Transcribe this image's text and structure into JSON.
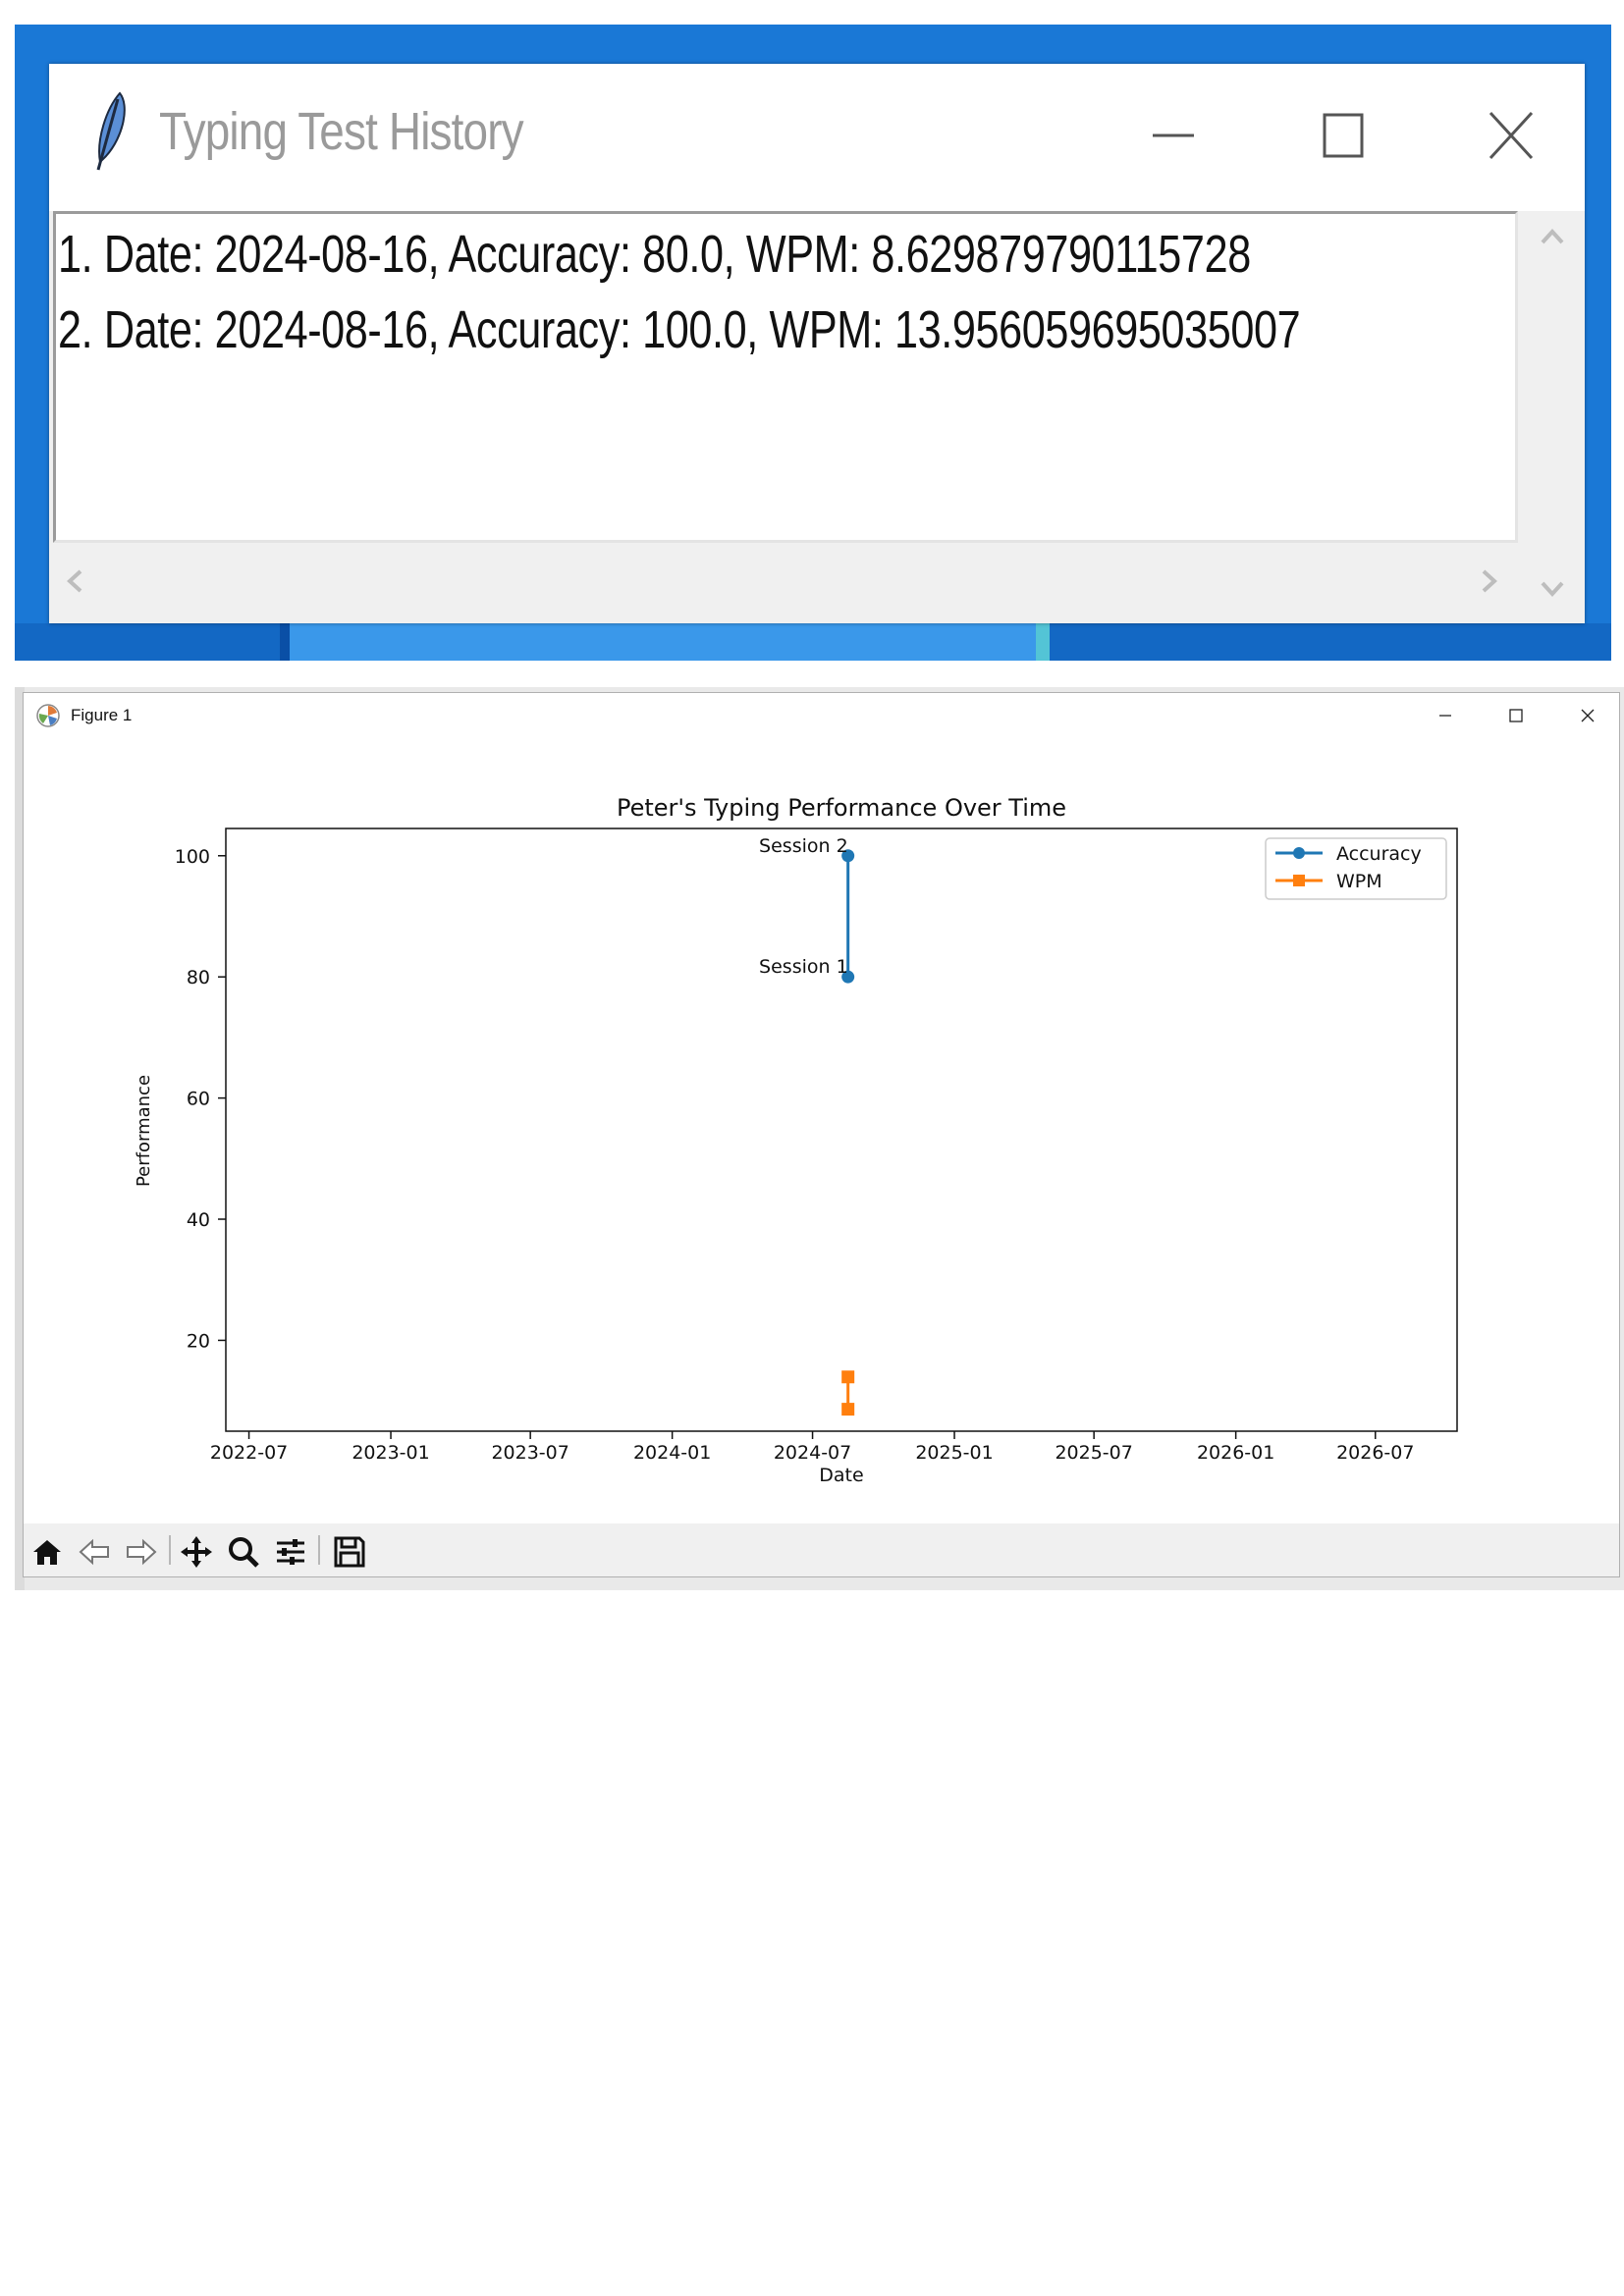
{
  "history_window": {
    "title": "Typing Test History",
    "entries": [
      "1. Date: 2024-08-16, Accuracy: 80.0, WPM: 8.629879790115728",
      "2. Date: 2024-08-16, Accuracy: 100.0, WPM: 13.956059695035007"
    ],
    "icons": {
      "app": "feather-icon",
      "minimize": "minimize-icon",
      "maximize": "maximize-icon",
      "close": "close-icon",
      "scroll_up": "chevron-up-icon",
      "scroll_down": "chevron-down-icon",
      "scroll_left": "chevron-left-icon",
      "scroll_right": "chevron-right-icon"
    }
  },
  "figure_window": {
    "title": "Figure 1",
    "toolbar": [
      "home-icon",
      "back-icon",
      "forward-icon",
      "pan-icon",
      "zoom-icon",
      "configure-subplots-icon",
      "save-icon"
    ]
  },
  "chart_data": {
    "type": "line",
    "title": "Peter's Typing Performance Over Time",
    "xlabel": "Date",
    "ylabel": "Performance",
    "x_ticks": [
      "2022-07",
      "2023-01",
      "2023-07",
      "2024-01",
      "2024-07",
      "2025-01",
      "2025-07",
      "2026-01",
      "2026-07"
    ],
    "y_ticks": [
      20,
      40,
      60,
      80,
      100
    ],
    "xlim": [
      "2022-06-01",
      "2026-10-15"
    ],
    "ylim": [
      5,
      104.5
    ],
    "legend_position": "upper-right",
    "grid": false,
    "series": [
      {
        "name": "Accuracy",
        "marker": "circle",
        "color": "#1f77b4",
        "x": [
          "2024-08-16",
          "2024-08-16"
        ],
        "values": [
          80.0,
          100.0
        ]
      },
      {
        "name": "WPM",
        "marker": "square",
        "color": "#ff7f0e",
        "x": [
          "2024-08-16",
          "2024-08-16"
        ],
        "values": [
          8.629879790115728,
          13.956059695035007
        ]
      }
    ],
    "annotations": [
      {
        "text": "Session 1",
        "x": "2024-08-16",
        "y": 80.0
      },
      {
        "text": "Session 2",
        "x": "2024-08-16",
        "y": 100.0
      }
    ]
  }
}
